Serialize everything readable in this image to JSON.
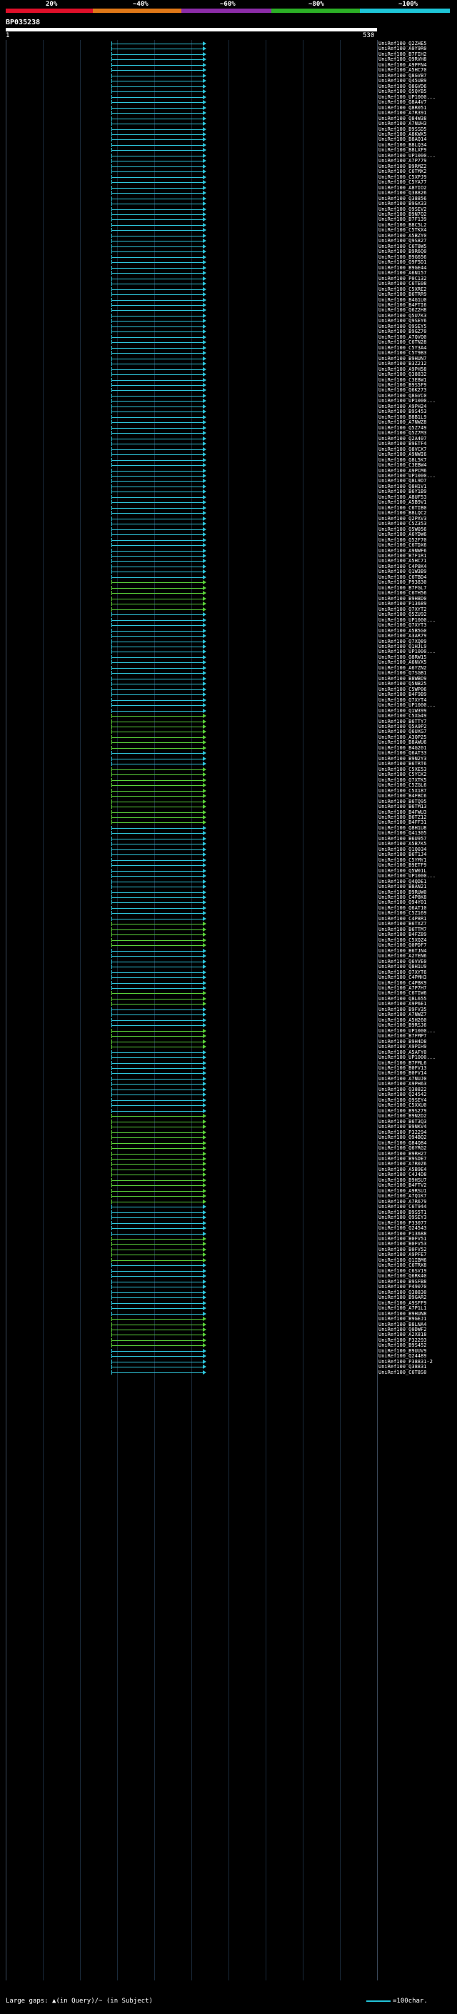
{
  "legend": {
    "ticks": [
      "20%",
      "~40%",
      "~60%",
      "~80%",
      "~100%"
    ],
    "colors": [
      "#e0102a",
      "#e07818",
      "#8c2ca8",
      "#2cb026",
      "#1ec6d8"
    ]
  },
  "query": {
    "id": "BP035238",
    "start": "1",
    "end": "530"
  },
  "hit_colors": {
    "cyan": "#2fc8de",
    "green": "#5bd33a"
  },
  "hits": [
    {
      "label": "UniRef100_Q2ZHE5",
      "color": "cyan"
    },
    {
      "label": "UniRef100_A0Y9R0",
      "color": "cyan"
    },
    {
      "label": "UniRef100_B7FIH2",
      "color": "cyan"
    },
    {
      "label": "UniRef100_Q9RVH8",
      "color": "cyan"
    },
    {
      "label": "UniRef100_A9PFN4",
      "color": "cyan"
    },
    {
      "label": "UniRef100_A5HC70",
      "color": "cyan"
    },
    {
      "label": "UniRef100_Q8GVB7",
      "color": "cyan"
    },
    {
      "label": "UniRef100_Q45UB9",
      "color": "cyan"
    },
    {
      "label": "UniRef100_Q8GVD6",
      "color": "cyan"
    },
    {
      "label": "UniRef100_Q5QYB5",
      "color": "cyan"
    },
    {
      "label": "UniRef100_UP1000...",
      "color": "cyan"
    },
    {
      "label": "UniRef100_Q8A4V7",
      "color": "cyan"
    },
    {
      "label": "UniRef100_Q8R051",
      "color": "cyan"
    },
    {
      "label": "UniRef100_A7R391",
      "color": "cyan"
    },
    {
      "label": "UniRef100_Q84W38",
      "color": "cyan"
    },
    {
      "label": "UniRef100_A7NUH3",
      "color": "cyan"
    },
    {
      "label": "UniRef100_B9SSD5",
      "color": "cyan"
    },
    {
      "label": "UniRef100_A8KWX5",
      "color": "cyan"
    },
    {
      "label": "UniRef100_B8AQ14",
      "color": "cyan"
    },
    {
      "label": "UniRef100_B8LQ34",
      "color": "cyan"
    },
    {
      "label": "UniRef100_B8LXF9",
      "color": "cyan"
    },
    {
      "label": "UniRef100_UP1000...",
      "color": "cyan"
    },
    {
      "label": "UniRef100_A7P779",
      "color": "cyan"
    },
    {
      "label": "UniRef100_B9RMZ2",
      "color": "cyan"
    },
    {
      "label": "UniRef100_C6TMX2",
      "color": "cyan"
    },
    {
      "label": "UniRef100_C5XPJ9",
      "color": "cyan"
    },
    {
      "label": "UniRef100_C5YA77",
      "color": "cyan"
    },
    {
      "label": "UniRef100_A8YIO2",
      "color": "cyan"
    },
    {
      "label": "UniRef100_Q38826",
      "color": "cyan"
    },
    {
      "label": "UniRef100_Q38856",
      "color": "cyan"
    },
    {
      "label": "UniRef100_B9GX33",
      "color": "cyan"
    },
    {
      "label": "UniRef100_Q9SEV2",
      "color": "cyan"
    },
    {
      "label": "UniRef100_B9N7Q2",
      "color": "cyan"
    },
    {
      "label": "UniRef100_B7F139",
      "color": "cyan"
    },
    {
      "label": "UniRef100_B8C5L2",
      "color": "cyan"
    },
    {
      "label": "UniRef100_C5TKX4",
      "color": "cyan"
    },
    {
      "label": "UniRef100_A5BZY0",
      "color": "cyan"
    },
    {
      "label": "UniRef100_Q9S827",
      "color": "cyan"
    },
    {
      "label": "UniRef100_C6T8W5",
      "color": "cyan"
    },
    {
      "label": "UniRef100_B9R6Q0",
      "color": "cyan"
    },
    {
      "label": "UniRef100_B9G656",
      "color": "cyan"
    },
    {
      "label": "UniRef100_Q9F5D1",
      "color": "cyan"
    },
    {
      "label": "UniRef100_B9GE44",
      "color": "cyan"
    },
    {
      "label": "UniRef100_A6N157",
      "color": "cyan"
    },
    {
      "label": "UniRef100_P0C132",
      "color": "cyan"
    },
    {
      "label": "UniRef100_C6TE08",
      "color": "cyan"
    },
    {
      "label": "UniRef100_C5XRE2",
      "color": "cyan"
    },
    {
      "label": "UniRef100_B6TRR9",
      "color": "cyan"
    },
    {
      "label": "UniRef100_B4G1U0",
      "color": "cyan"
    },
    {
      "label": "UniRef100_B4FTI6",
      "color": "cyan"
    },
    {
      "label": "UniRef100_Q6Z2H8",
      "color": "cyan"
    },
    {
      "label": "UniRef100_Q5U7K3",
      "color": "cyan"
    },
    {
      "label": "UniRef100_Q9SEY6",
      "color": "cyan"
    },
    {
      "label": "UniRef100_Q9SEY5",
      "color": "cyan"
    },
    {
      "label": "UniRef100_B9GZ70",
      "color": "cyan"
    },
    {
      "label": "UniRef100_A7QVQ0",
      "color": "cyan"
    },
    {
      "label": "UniRef100_C6TN28",
      "color": "cyan"
    },
    {
      "label": "UniRef100_C5Y3A4",
      "color": "cyan"
    },
    {
      "label": "UniRef100_C5T9B3",
      "color": "cyan"
    },
    {
      "label": "UniRef100_B9HUN7",
      "color": "cyan"
    },
    {
      "label": "UniRef100_B3Z212",
      "color": "cyan"
    },
    {
      "label": "UniRef100_A9PH58",
      "color": "cyan"
    },
    {
      "label": "UniRef100_Q38832",
      "color": "cyan"
    },
    {
      "label": "UniRef100_C3E8W1",
      "color": "cyan"
    },
    {
      "label": "UniRef100_B9S5F9",
      "color": "cyan"
    },
    {
      "label": "UniRef100_Q6K273",
      "color": "cyan"
    },
    {
      "label": "UniRef100_Q8GVC0",
      "color": "cyan"
    },
    {
      "label": "UniRef100_UP1000...",
      "color": "cyan"
    },
    {
      "label": "UniRef100_A9PH24",
      "color": "cyan"
    },
    {
      "label": "UniRef100_B9S453",
      "color": "cyan"
    },
    {
      "label": "UniRef100_B8B1L9",
      "color": "cyan"
    },
    {
      "label": "UniRef100_A7NWZ8",
      "color": "cyan"
    },
    {
      "label": "UniRef100_Q5Z749",
      "color": "cyan"
    },
    {
      "label": "UniRef100_Q5Z7M3",
      "color": "cyan"
    },
    {
      "label": "UniRef100_Q2A407",
      "color": "cyan"
    },
    {
      "label": "UniRef100_B9ETF4",
      "color": "cyan"
    },
    {
      "label": "UniRef100_Q8VCX7",
      "color": "cyan"
    },
    {
      "label": "UniRef100_A9NWI6",
      "color": "cyan"
    },
    {
      "label": "UniRef100_Q8L5K7",
      "color": "cyan"
    },
    {
      "label": "UniRef100_C3EBW4",
      "color": "cyan"
    },
    {
      "label": "UniRef100_A9PCM6",
      "color": "cyan"
    },
    {
      "label": "UniRef100_UP1000...",
      "color": "cyan"
    },
    {
      "label": "UniRef100_Q8L9D7",
      "color": "cyan"
    },
    {
      "label": "UniRef100_Q8H1V1",
      "color": "cyan"
    },
    {
      "label": "UniRef100_B6Y1B9",
      "color": "cyan"
    },
    {
      "label": "UniRef100_A8UF53",
      "color": "cyan"
    },
    {
      "label": "UniRef100_A5B9V1",
      "color": "cyan"
    },
    {
      "label": "UniRef100_C6TIB0",
      "color": "cyan"
    },
    {
      "label": "UniRef100_B8LQC2",
      "color": "cyan"
    },
    {
      "label": "UniRef100_Q2PXV3",
      "color": "cyan"
    },
    {
      "label": "UniRef100_C5Z353",
      "color": "cyan"
    },
    {
      "label": "UniRef100_Q5W056",
      "color": "cyan"
    },
    {
      "label": "UniRef100_A6YDW6",
      "color": "cyan"
    },
    {
      "label": "UniRef100_Q52F70",
      "color": "cyan"
    },
    {
      "label": "UniRef100_C6TDX6",
      "color": "cyan"
    },
    {
      "label": "UniRef100_A9NWF6",
      "color": "cyan"
    },
    {
      "label": "UniRef100_B7F1R1",
      "color": "cyan"
    },
    {
      "label": "UniRef100_A5HC71",
      "color": "cyan"
    },
    {
      "label": "UniRef100_C4P8K4",
      "color": "cyan"
    },
    {
      "label": "UniRef100_Q1W3B9",
      "color": "cyan"
    },
    {
      "label": "UniRef100_C6TBD4",
      "color": "cyan"
    },
    {
      "label": "UniRef100_P93830",
      "color": "green"
    },
    {
      "label": "UniRef100_B7FGL7",
      "color": "green"
    },
    {
      "label": "UniRef100_C6TH56",
      "color": "green"
    },
    {
      "label": "UniRef100_B9H8D0",
      "color": "green"
    },
    {
      "label": "UniRef100_P13689",
      "color": "green"
    },
    {
      "label": "UniRef100_Q7XYT2",
      "color": "green"
    },
    {
      "label": "UniRef100_Q5ZU92",
      "color": "cyan"
    },
    {
      "label": "UniRef100_UP1000...",
      "color": "cyan"
    },
    {
      "label": "UniRef100_Q7XYT3",
      "color": "cyan"
    },
    {
      "label": "UniRef100_A5B5G0",
      "color": "cyan"
    },
    {
      "label": "UniRef100_A3AR79",
      "color": "cyan"
    },
    {
      "label": "UniRef100_Q7XQ89",
      "color": "cyan"
    },
    {
      "label": "UniRef100_Q1HJL9",
      "color": "cyan"
    },
    {
      "label": "UniRef100_UP1000...",
      "color": "cyan"
    },
    {
      "label": "UniRef100_Q8RW15",
      "color": "cyan"
    },
    {
      "label": "UniRef100_A6NVX5",
      "color": "cyan"
    },
    {
      "label": "UniRef100_A6YZN2",
      "color": "cyan"
    },
    {
      "label": "UniRef100_Q7SGB1",
      "color": "cyan"
    },
    {
      "label": "UniRef100_B8WBO9",
      "color": "cyan"
    },
    {
      "label": "UniRef100_Q5NB25",
      "color": "cyan"
    },
    {
      "label": "UniRef100_C5WP06",
      "color": "cyan"
    },
    {
      "label": "UniRef100_B4F9B9",
      "color": "cyan"
    },
    {
      "label": "UniRef100_Q7XYT4",
      "color": "cyan"
    },
    {
      "label": "UniRef100_UP1000...",
      "color": "cyan"
    },
    {
      "label": "UniRef100_Q1W399",
      "color": "cyan"
    },
    {
      "label": "UniRef100_C5XG49",
      "color": "green"
    },
    {
      "label": "UniRef100_B6TTY7",
      "color": "green"
    },
    {
      "label": "UniRef100_Q5A9P2",
      "color": "green"
    },
    {
      "label": "UniRef100_Q6UXG7",
      "color": "green"
    },
    {
      "label": "UniRef100_A3QP25",
      "color": "green"
    },
    {
      "label": "UniRef100_B8AWU6",
      "color": "green"
    },
    {
      "label": "UniRef100_B4G201",
      "color": "green"
    },
    {
      "label": "UniRef100_Q6AT33",
      "color": "cyan"
    },
    {
      "label": "UniRef100_B9N2Y3",
      "color": "cyan"
    },
    {
      "label": "UniRef100_B6TRT6",
      "color": "cyan"
    },
    {
      "label": "UniRef100_C5XE53",
      "color": "green"
    },
    {
      "label": "UniRef100_C5YCK2",
      "color": "green"
    },
    {
      "label": "UniRef100_Q7XTK5",
      "color": "green"
    },
    {
      "label": "UniRef100_C5ZGL6",
      "color": "green"
    },
    {
      "label": "UniRef100_C5X187",
      "color": "green"
    },
    {
      "label": "UniRef100_B4FBC6",
      "color": "green"
    },
    {
      "label": "UniRef100_B6TQ95",
      "color": "green"
    },
    {
      "label": "UniRef100_B6TM13",
      "color": "green"
    },
    {
      "label": "UniRef100_B4FWU3",
      "color": "green"
    },
    {
      "label": "UniRef100_B6TZ12",
      "color": "green"
    },
    {
      "label": "UniRef100_B4FF31",
      "color": "green"
    },
    {
      "label": "UniRef100_Q8H1U8",
      "color": "cyan"
    },
    {
      "label": "UniRef100_Q41305",
      "color": "cyan"
    },
    {
      "label": "UniRef100_B6U957",
      "color": "cyan"
    },
    {
      "label": "UniRef100_A5B7K5",
      "color": "cyan"
    },
    {
      "label": "UniRef100_Q1Q034",
      "color": "cyan"
    },
    {
      "label": "UniRef100_B6T1J4",
      "color": "cyan"
    },
    {
      "label": "UniRef100_C5YMY1",
      "color": "cyan"
    },
    {
      "label": "UniRef100_B9ETF9",
      "color": "cyan"
    },
    {
      "label": "UniRef100_Q5W01L",
      "color": "cyan"
    },
    {
      "label": "UniRef100_UP1000...",
      "color": "cyan"
    },
    {
      "label": "UniRef100_Q4QDE1",
      "color": "cyan"
    },
    {
      "label": "UniRef100_B8AN21",
      "color": "cyan"
    },
    {
      "label": "UniRef100_B9RUW0",
      "color": "cyan"
    },
    {
      "label": "UniRef100_C4P8K8",
      "color": "cyan"
    },
    {
      "label": "UniRef100_Q94Y01",
      "color": "cyan"
    },
    {
      "label": "UniRef100_Q6AT10",
      "color": "cyan"
    },
    {
      "label": "UniRef100_C5Z169",
      "color": "cyan"
    },
    {
      "label": "UniRef100_C4P8R1",
      "color": "cyan"
    },
    {
      "label": "UniRef100_B6TXZ7",
      "color": "green"
    },
    {
      "label": "UniRef100_B6TTM7",
      "color": "green"
    },
    {
      "label": "UniRef100_B4FZ89",
      "color": "green"
    },
    {
      "label": "UniRef100_C5XQZ4",
      "color": "green"
    },
    {
      "label": "UniRef100_Q0PDF7",
      "color": "green"
    },
    {
      "label": "UniRef100_B6TJN4",
      "color": "cyan"
    },
    {
      "label": "UniRef100_A2YEN6",
      "color": "cyan"
    },
    {
      "label": "UniRef100_Q6VVE0",
      "color": "cyan"
    },
    {
      "label": "UniRef100_Q8H1U9",
      "color": "cyan"
    },
    {
      "label": "UniRef100_Q7XYT6",
      "color": "cyan"
    },
    {
      "label": "UniRef100_C4PMH3",
      "color": "cyan"
    },
    {
      "label": "UniRef100_C4P8K9",
      "color": "cyan"
    },
    {
      "label": "UniRef100_A7P7H7",
      "color": "cyan"
    },
    {
      "label": "UniRef100_C6TIW6",
      "color": "green"
    },
    {
      "label": "UniRef100_Q8L655",
      "color": "green"
    },
    {
      "label": "UniRef100_A9P6E1",
      "color": "green"
    },
    {
      "label": "UniRef100_B9FV35",
      "color": "cyan"
    },
    {
      "label": "UniRef100_A7NWZ7",
      "color": "cyan"
    },
    {
      "label": "UniRef100_A5H260",
      "color": "cyan"
    },
    {
      "label": "UniRef100_B9RSJ6",
      "color": "cyan"
    },
    {
      "label": "UniRef100_UP1000...",
      "color": "green"
    },
    {
      "label": "UniRef100_B7FMP7",
      "color": "green"
    },
    {
      "label": "UniRef100_B9H4D8",
      "color": "green"
    },
    {
      "label": "UniRef100_A9PIH9",
      "color": "green"
    },
    {
      "label": "UniRef100_A5AFY0",
      "color": "cyan"
    },
    {
      "label": "UniRef100_UP1000...",
      "color": "cyan"
    },
    {
      "label": "UniRef100_B7FML6",
      "color": "cyan"
    },
    {
      "label": "UniRef100_B0FV13",
      "color": "cyan"
    },
    {
      "label": "UniRef100_B0FV14",
      "color": "cyan"
    },
    {
      "label": "UniRef100_A7NUJ0",
      "color": "cyan"
    },
    {
      "label": "UniRef100_A9PH63",
      "color": "cyan"
    },
    {
      "label": "UniRef100_Q38822",
      "color": "cyan"
    },
    {
      "label": "UniRef100_Q24542",
      "color": "cyan"
    },
    {
      "label": "UniRef100_Q9SEY4",
      "color": "cyan"
    },
    {
      "label": "UniRef100_C5XXU0",
      "color": "cyan"
    },
    {
      "label": "UniRef100_B9S279",
      "color": "cyan"
    },
    {
      "label": "UniRef100_B9N2D2",
      "color": "green"
    },
    {
      "label": "UniRef100_B6T3Q3",
      "color": "green"
    },
    {
      "label": "UniRef100_B9NKV4",
      "color": "green"
    },
    {
      "label": "UniRef100_P32294",
      "color": "green"
    },
    {
      "label": "UniRef100_Q94BQ2",
      "color": "green"
    },
    {
      "label": "UniRef100_Q84Q84",
      "color": "green"
    },
    {
      "label": "UniRef100_Q6YRG2",
      "color": "green"
    },
    {
      "label": "UniRef100_B9RH27",
      "color": "green"
    },
    {
      "label": "UniRef100_B9SDE7",
      "color": "green"
    },
    {
      "label": "UniRef100_A7R0Z6",
      "color": "green"
    },
    {
      "label": "UniRef100_A5B9E4",
      "color": "green"
    },
    {
      "label": "UniRef100_C4J4D8",
      "color": "green"
    },
    {
      "label": "UniRef100_B9HSU7",
      "color": "green"
    },
    {
      "label": "UniRef100_B4FTV2",
      "color": "green"
    },
    {
      "label": "UniRef100_A9RSU1",
      "color": "green"
    },
    {
      "label": "UniRef100_A7Q1K7",
      "color": "green"
    },
    {
      "label": "UniRef100_A7R679",
      "color": "green"
    },
    {
      "label": "UniRef100_C6T944",
      "color": "cyan"
    },
    {
      "label": "UniRef100_B9S5T1",
      "color": "cyan"
    },
    {
      "label": "UniRef100_Q9SEY3",
      "color": "cyan"
    },
    {
      "label": "UniRef100_P33077",
      "color": "cyan"
    },
    {
      "label": "UniRef100_Q24543",
      "color": "cyan"
    },
    {
      "label": "UniRef100_P13688",
      "color": "cyan"
    },
    {
      "label": "UniRef100_B0FV51",
      "color": "green"
    },
    {
      "label": "UniRef100_B0FV53",
      "color": "green"
    },
    {
      "label": "UniRef100_B0FV52",
      "color": "green"
    },
    {
      "label": "UniRef100_A9PFE7",
      "color": "green"
    },
    {
      "label": "UniRef100_Q1IBM6",
      "color": "green"
    },
    {
      "label": "UniRef100_C6TRX8",
      "color": "cyan"
    },
    {
      "label": "UniRef100_C6SV19",
      "color": "cyan"
    },
    {
      "label": "UniRef100_Q6RK40",
      "color": "cyan"
    },
    {
      "label": "UniRef100_B9SFB8",
      "color": "cyan"
    },
    {
      "label": "UniRef100_P49070",
      "color": "cyan"
    },
    {
      "label": "UniRef100_Q38830",
      "color": "cyan"
    },
    {
      "label": "UniRef100_B9GAR2",
      "color": "cyan"
    },
    {
      "label": "UniRef100_A9SFF9",
      "color": "cyan"
    },
    {
      "label": "UniRef100_A7P1L1",
      "color": "cyan"
    },
    {
      "label": "UniRef100_B9HUN8",
      "color": "cyan"
    },
    {
      "label": "UniRef100_B9GEJ1",
      "color": "green"
    },
    {
      "label": "UniRef100_B8LNA4",
      "color": "green"
    },
    {
      "label": "UniRef100_Q0DWF2",
      "color": "green"
    },
    {
      "label": "UniRef100_A2X818",
      "color": "green"
    },
    {
      "label": "UniRef100_P32293",
      "color": "green"
    },
    {
      "label": "UniRef100_B9S452",
      "color": "green"
    },
    {
      "label": "UniRef100_B9UUV9",
      "color": "cyan"
    },
    {
      "label": "UniRef100_Q24489",
      "color": "cyan"
    },
    {
      "label": "UniRef100_P38831-2",
      "color": "cyan"
    },
    {
      "label": "UniRef100_Q38831",
      "color": "cyan"
    },
    {
      "label": "UniRef100_C6T8S0",
      "color": "cyan"
    }
  ],
  "footer": {
    "large_gaps": "Large gaps: ▲(in Query)/~ (in Subject)",
    "scale": "=100char."
  }
}
